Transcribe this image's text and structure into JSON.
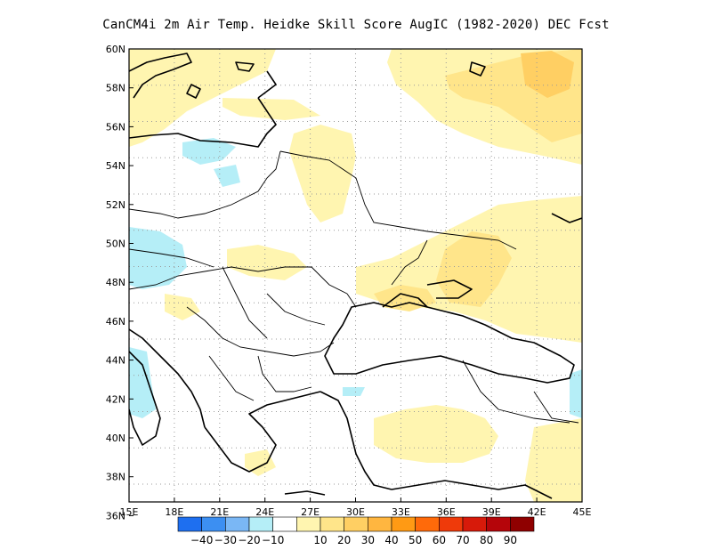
{
  "title": "CanCM4i  2m Air Temp. Heidke Skill Score AugIC (1982-2020) DEC Fcst",
  "map": {
    "lon_ticks": [
      "15E",
      "18E",
      "21E",
      "24E",
      "27E",
      "30E",
      "33E",
      "36E",
      "39E",
      "42E",
      "45E"
    ],
    "lat_ticks": [
      "60N",
      "58N",
      "56N",
      "54N",
      "52N",
      "50N",
      "48N",
      "46N",
      "44N",
      "42N",
      "40N",
      "38N",
      "36N"
    ],
    "fill_colors": {
      "neg10_0": "#b5eef7",
      "pos10_20": "#fff5b0",
      "pos20_30": "#ffe58a",
      "pos30_40": "#ffcf63"
    },
    "grid": "dotted"
  },
  "colorbar": {
    "colors": [
      "#1e6ff0",
      "#3c8ff2",
      "#7ab7f5",
      "#b5eef7",
      "#ffffff",
      "#fff5b0",
      "#ffe58a",
      "#ffcf63",
      "#ffb640",
      "#ff9a14",
      "#ff6a0a",
      "#ef3a0a",
      "#d71a0a",
      "#b5050a",
      "#8f0000"
    ],
    "labels": [
      "-40",
      "-30",
      "-20",
      "-10",
      "10",
      "20",
      "30",
      "40",
      "50",
      "60",
      "70",
      "80",
      "90"
    ]
  }
}
